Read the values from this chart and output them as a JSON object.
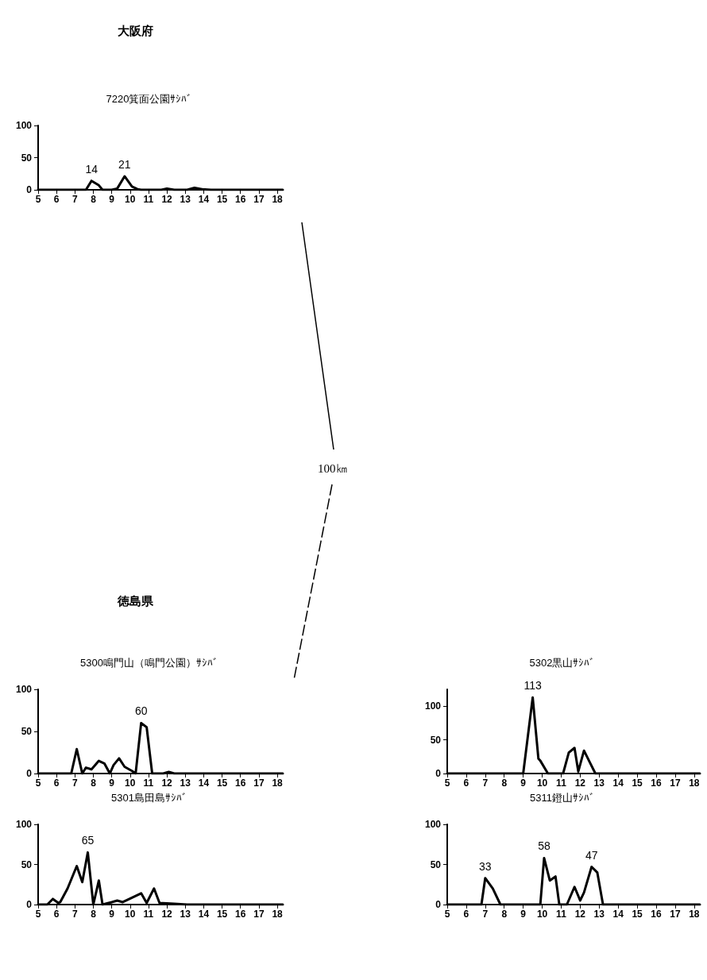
{
  "chart_data": [
    {
      "type": "line",
      "title": "7220箕面公園ｻｼﾊﾞ",
      "annotations": [
        "大阪府",
        "100㎞",
        {
          "text": "14",
          "x": 7.9,
          "y": 14
        },
        {
          "text": "21",
          "x": 9.7,
          "y": 21
        }
      ],
      "series": [
        {
          "color": "#000000",
          "x": [
            5,
            7.6,
            7.9,
            8.3,
            8.5,
            9.0,
            9.3,
            9.7,
            10.1,
            10.4,
            10.6,
            11.7,
            12.0,
            12.4,
            13.1,
            13.5,
            13.9,
            14.4,
            18.3
          ],
          "values": [
            0,
            0,
            14,
            7,
            0,
            0,
            2,
            21,
            5,
            1,
            0,
            0,
            2,
            0,
            0,
            3,
            1,
            0,
            0
          ]
        }
      ],
      "xlim": [
        5,
        18.3
      ],
      "xticks": [
        5,
        6,
        7,
        8,
        9,
        10,
        11,
        12,
        13,
        14,
        15,
        16,
        17,
        18
      ],
      "ylim": [
        0,
        100
      ],
      "yticks": [
        0,
        50,
        100
      ],
      "grid": false,
      "marker": "none",
      "line_style": "solid"
    },
    {
      "type": "line",
      "title": "5300鳴門山（鳴門公園）ｻｼﾊﾞ",
      "annotations": [
        "徳島県",
        {
          "text": "60",
          "x": 10.6,
          "y": 60
        }
      ],
      "series": [
        {
          "color": "#000000",
          "x": [
            5,
            6.8,
            7.1,
            7.4,
            7.6,
            7.9,
            8.3,
            8.6,
            8.9,
            9.1,
            9.4,
            9.7,
            10.1,
            10.3,
            10.6,
            10.9,
            11.2,
            11.8,
            12.1,
            12.4,
            18.3
          ],
          "values": [
            0,
            0,
            29,
            0,
            7,
            5,
            15,
            12,
            0,
            10,
            18,
            8,
            3,
            0,
            60,
            55,
            0,
            0,
            2,
            0,
            0
          ]
        }
      ],
      "xlim": [
        5,
        18.3
      ],
      "xticks": [
        5,
        6,
        7,
        8,
        9,
        10,
        11,
        12,
        13,
        14,
        15,
        16,
        17,
        18
      ],
      "ylim": [
        0,
        100
      ],
      "yticks": [
        0,
        50,
        100
      ],
      "grid": false,
      "marker": "none",
      "line_style": "solid"
    },
    {
      "type": "line",
      "title": "5301島田島ｻｼﾊﾞ",
      "annotations": [
        {
          "text": "65",
          "x": 7.7,
          "y": 65
        }
      ],
      "series": [
        {
          "color": "#000000",
          "x": [
            5,
            5.5,
            5.8,
            6.1,
            6.2,
            6.6,
            7.1,
            7.4,
            7.7,
            8.0,
            8.3,
            8.5,
            9.0,
            9.3,
            9.6,
            10.6,
            10.9,
            11.3,
            11.6,
            12.4,
            13.1,
            18.3
          ],
          "values": [
            0,
            0,
            7,
            2,
            3,
            20,
            48,
            28,
            65,
            0,
            30,
            0,
            3,
            5,
            3,
            14,
            2,
            20,
            2,
            1,
            0,
            0
          ]
        }
      ],
      "xlim": [
        5,
        18.3
      ],
      "xticks": [
        5,
        6,
        7,
        8,
        9,
        10,
        11,
        12,
        13,
        14,
        15,
        16,
        17,
        18
      ],
      "ylim": [
        0,
        100
      ],
      "yticks": [
        0,
        50,
        100
      ],
      "grid": false,
      "marker": "none",
      "line_style": "solid"
    },
    {
      "type": "line",
      "title": "5302黒山ｻｼﾊﾞ",
      "annotations": [
        {
          "text": "113",
          "x": 9.5,
          "y": 113
        }
      ],
      "series": [
        {
          "color": "#000000",
          "x": [
            5,
            9.0,
            9.5,
            9.8,
            9.9,
            10.3,
            11.1,
            11.4,
            11.7,
            11.9,
            12.2,
            12.5,
            12.8,
            18.3
          ],
          "values": [
            0,
            0,
            113,
            22,
            19,
            0,
            0,
            31,
            38,
            3,
            34,
            17,
            0,
            0
          ]
        }
      ],
      "xlim": [
        5,
        18.3
      ],
      "xticks": [
        5,
        6,
        7,
        8,
        9,
        10,
        11,
        12,
        13,
        14,
        15,
        16,
        17,
        18
      ],
      "ylim": [
        0,
        125
      ],
      "yticks": [
        0,
        50,
        100
      ],
      "grid": false,
      "marker": "none",
      "line_style": "solid"
    },
    {
      "type": "line",
      "title": "5311鐙山ｻｼﾊﾞ",
      "annotations": [
        {
          "text": "33",
          "x": 7.0,
          "y": 33
        },
        {
          "text": "58",
          "x": 10.1,
          "y": 58
        },
        {
          "text": "47",
          "x": 12.6,
          "y": 47
        }
      ],
      "series": [
        {
          "color": "#000000",
          "x": [
            5,
            6.8,
            7.0,
            7.4,
            7.8,
            9.9,
            10.1,
            10.4,
            10.7,
            10.9,
            11.3,
            11.7,
            12.0,
            12.2,
            12.6,
            12.9,
            13.2,
            18.3
          ],
          "values": [
            0,
            0,
            33,
            20,
            0,
            0,
            58,
            30,
            35,
            0,
            0,
            22,
            5,
            15,
            47,
            40,
            0,
            0
          ]
        }
      ],
      "xlim": [
        5,
        18.3
      ],
      "xticks": [
        5,
        6,
        7,
        8,
        9,
        10,
        11,
        12,
        13,
        14,
        15,
        16,
        17,
        18
      ],
      "ylim": [
        0,
        100
      ],
      "yticks": [
        0,
        50,
        100
      ],
      "grid": false,
      "marker": "none",
      "line_style": "solid"
    }
  ]
}
